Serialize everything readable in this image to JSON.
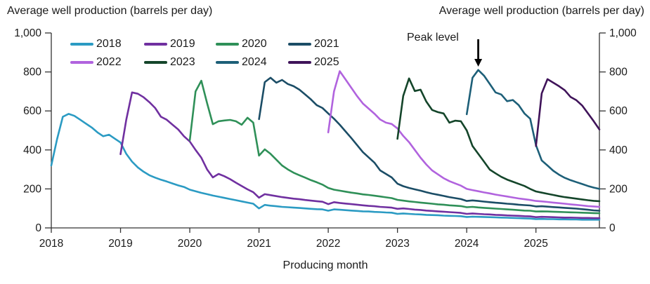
{
  "header": {
    "left_title": "Average well production (barrels per day)",
    "right_title": "Average well production (barrels per day)"
  },
  "x_axis_label": "Producing month",
  "annotation": {
    "label": "Peak level"
  },
  "chart_data": {
    "type": "line",
    "title": "Average well production (barrels per day)",
    "xlabel": "Producing month",
    "ylabel": "Average well production (barrels per day)",
    "ylim": [
      0,
      1000
    ],
    "y_tick_values": [
      0,
      200,
      400,
      600,
      800,
      1000
    ],
    "y_tick_labels": [
      "0",
      "200",
      "400",
      "600",
      "800",
      "1,000"
    ],
    "x_tick_labels": [
      "2018",
      "2019",
      "2020",
      "2021",
      "2022",
      "2023",
      "2024",
      "2025"
    ],
    "x_range_months": [
      "2018-01",
      "2025-12"
    ],
    "grid": false,
    "dual_axis": true,
    "legend_position": "top-left two rows",
    "annotation": {
      "text": "Peak level",
      "series": "2024",
      "month": "2024-03",
      "value": 810
    },
    "series": [
      {
        "name": "2018",
        "color": "#2B9BC3",
        "start": "2018-01",
        "values": [
          320,
          455,
          570,
          585,
          575,
          555,
          535,
          515,
          490,
          470,
          478,
          458,
          438,
          380,
          340,
          310,
          288,
          270,
          258,
          247,
          238,
          228,
          218,
          210,
          196,
          188,
          180,
          173,
          166,
          160,
          154,
          148,
          142,
          136,
          130,
          124,
          100,
          118,
          114,
          111,
          108,
          106,
          104,
          102,
          100,
          98,
          96,
          95,
          88,
          95,
          93,
          91,
          89,
          87,
          85,
          84,
          82,
          81,
          79,
          78,
          72,
          74,
          72,
          70,
          69,
          67,
          66,
          65,
          63,
          62,
          61,
          60,
          56,
          58,
          57,
          56,
          55,
          54,
          53,
          52,
          51,
          50,
          49,
          48,
          45,
          46,
          45,
          45,
          44,
          44,
          43,
          43,
          42,
          42,
          42,
          42
        ]
      },
      {
        "name": "2019",
        "color": "#7030A0",
        "start": "2019-01",
        "values": [
          378,
          555,
          695,
          688,
          670,
          645,
          615,
          570,
          555,
          530,
          505,
          470,
          443,
          400,
          360,
          300,
          259,
          277,
          265,
          250,
          232,
          215,
          198,
          183,
          155,
          173,
          168,
          163,
          158,
          154,
          150,
          147,
          143,
          140,
          137,
          134,
          122,
          132,
          128,
          125,
          122,
          119,
          116,
          113,
          111,
          108,
          106,
          104,
          98,
          100,
          97,
          94,
          92,
          89,
          87,
          85,
          83,
          81,
          79,
          77,
          72,
          74,
          72,
          70,
          69,
          67,
          66,
          64,
          63,
          62,
          60,
          59,
          55,
          57,
          56,
          55,
          54,
          53,
          53,
          52,
          51,
          51,
          50,
          50
        ]
      },
      {
        "name": "2020",
        "color": "#2F9058",
        "start": "2020-01",
        "values": [
          450,
          700,
          755,
          640,
          532,
          547,
          551,
          554,
          547,
          529,
          565,
          540,
          371,
          403,
          380,
          350,
          320,
          300,
          283,
          270,
          258,
          245,
          234,
          222,
          205,
          196,
          191,
          186,
          181,
          177,
          172,
          169,
          165,
          161,
          157,
          153,
          144,
          140,
          136,
          133,
          130,
          127,
          124,
          121,
          119,
          116,
          114,
          112,
          106,
          108,
          105,
          103,
          101,
          99,
          97,
          95,
          93,
          91,
          89,
          88,
          84,
          85,
          84,
          83,
          82,
          81,
          80,
          79,
          78,
          77,
          76,
          75
        ]
      },
      {
        "name": "2021",
        "color": "#1B4D66",
        "start": "2021-01",
        "values": [
          558,
          748,
          770,
          745,
          759,
          738,
          727,
          709,
          684,
          659,
          630,
          615,
          587,
          560,
          529,
          495,
          461,
          425,
          389,
          362,
          335,
          295,
          277,
          259,
          227,
          214,
          205,
          198,
          191,
          183,
          176,
          170,
          164,
          158,
          153,
          148,
          138,
          141,
          138,
          135,
          132,
          129,
          127,
          124,
          122,
          119,
          117,
          115,
          110,
          111,
          109,
          107,
          105,
          103,
          101,
          99,
          96,
          93,
          90,
          88
        ]
      },
      {
        "name": "2022",
        "color": "#B163DE",
        "start": "2022-01",
        "values": [
          490,
          700,
          804,
          762,
          719,
          676,
          638,
          612,
          586,
          556,
          540,
          533,
          510,
          472,
          440,
          400,
          360,
          325,
          295,
          275,
          255,
          240,
          228,
          217,
          200,
          194,
          188,
          182,
          177,
          171,
          166,
          161,
          156,
          151,
          147,
          143,
          138,
          136,
          133,
          130,
          127,
          124,
          121,
          118,
          115,
          112,
          110,
          108
        ]
      },
      {
        "name": "2023",
        "color": "#14452A",
        "start": "2023-01",
        "values": [
          457,
          677,
          767,
          702,
          709,
          648,
          605,
          594,
          587,
          540,
          550,
          547,
          500,
          420,
          380,
          340,
          299,
          280,
          262,
          248,
          237,
          226,
          215,
          200,
          187,
          181,
          175,
          169,
          163,
          158,
          154,
          150,
          146,
          142,
          139,
          137
        ]
      },
      {
        "name": "2024",
        "color": "#1D5F78",
        "start": "2024-01",
        "values": [
          583,
          770,
          810,
          781,
          738,
          695,
          684,
          650,
          656,
          630,
          587,
          560,
          425,
          346,
          320,
          293,
          273,
          257,
          245,
          235,
          225,
          215,
          207,
          200
        ]
      },
      {
        "name": "2025",
        "color": "#3F1359",
        "start": "2025-01",
        "values": [
          420,
          690,
          763,
          745,
          727,
          706,
          672,
          655,
          628,
          588,
          548,
          505
        ]
      }
    ]
  }
}
